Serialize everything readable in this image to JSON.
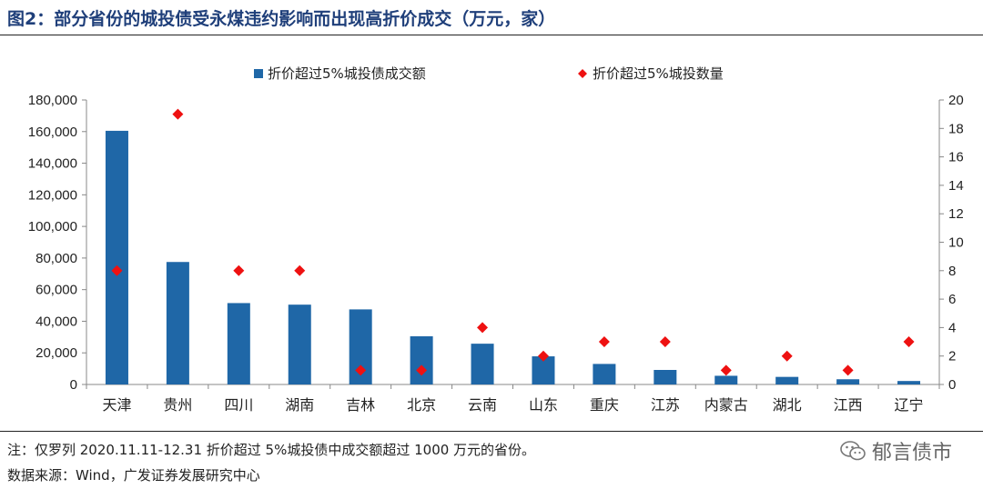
{
  "title": "图2：部分省份的城投债受永煤违约影响而出现高折价成交（万元，家）",
  "note": "注：仅罗列 2020.11.11-12.31 折价超过 5%城投债中成交额超过 1000 万元的省份。",
  "source": "数据来源：Wind，广发证券发展研究中心",
  "watermark": "郁言债市",
  "colors": {
    "bar": "#1f67a7",
    "marker": "#ee1111",
    "title": "#1f3f7a"
  },
  "chart_data": {
    "type": "bar",
    "categories": [
      "天津",
      "贵州",
      "四川",
      "湖南",
      "吉林",
      "北京",
      "云南",
      "山东",
      "重庆",
      "江苏",
      "内蒙古",
      "湖北",
      "江西",
      "辽宁"
    ],
    "series": [
      {
        "name": "折价超过5%城投债成交额",
        "type": "bar",
        "axis": "left",
        "values": [
          160500,
          77500,
          51500,
          50500,
          47500,
          30500,
          25800,
          17800,
          13000,
          9200,
          5500,
          4800,
          3300,
          2200
        ]
      },
      {
        "name": "折价超过5%城投数量",
        "type": "scatter",
        "marker": "diamond",
        "axis": "right",
        "values": [
          8,
          19,
          8,
          8,
          1,
          1,
          4,
          2,
          3,
          3,
          1,
          2,
          1,
          3
        ]
      }
    ],
    "ylim_left": [
      0,
      180000
    ],
    "ylim_right": [
      0,
      20
    ],
    "yticks_left": [
      "0",
      "20,000",
      "40,000",
      "60,000",
      "80,000",
      "100,000",
      "120,000",
      "140,000",
      "160,000",
      "180,000"
    ],
    "yticks_right": [
      "0",
      "2",
      "4",
      "6",
      "8",
      "10",
      "12",
      "14",
      "16",
      "18",
      "20"
    ],
    "legend_position": "top",
    "grid": false
  }
}
